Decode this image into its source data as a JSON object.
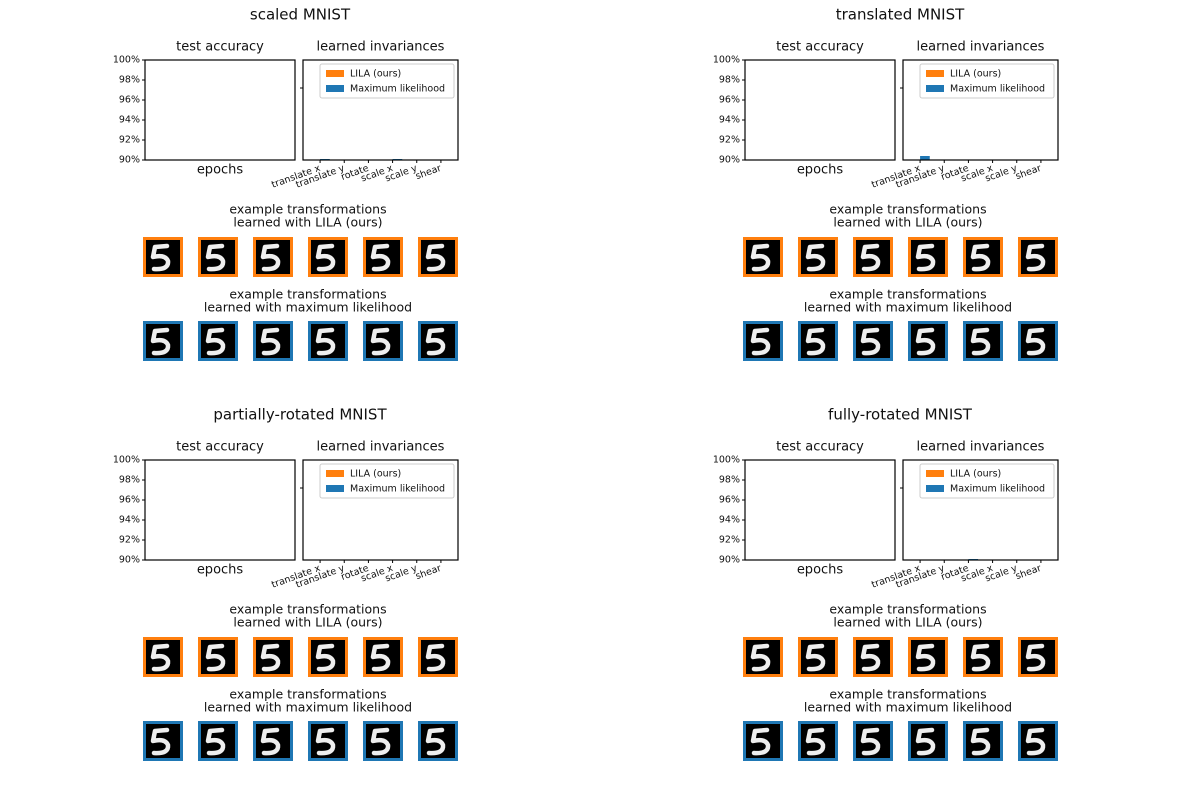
{
  "chart_data": [
    {
      "type": "line",
      "title": "test accuracy",
      "xlabel": "epochs",
      "ylim": [
        90,
        100
      ],
      "yticks": [
        {
          "value": 90,
          "label": "90%"
        },
        {
          "value": 92,
          "label": "92%"
        },
        {
          "value": 94,
          "label": "94%"
        },
        {
          "value": 96,
          "label": "96%"
        },
        {
          "value": 98,
          "label": "98%"
        },
        {
          "value": 100,
          "label": "100%"
        }
      ]
    },
    {
      "type": "bar",
      "title": "learned invariances",
      "ylim": [
        90,
        100
      ],
      "legend": "upper right",
      "categories": [
        "translate x",
        "translate y",
        "rotate",
        "scale x",
        "scale y",
        "shear"
      ],
      "series": [
        {
          "name": "LILA (ours)",
          "color": "#ff7f0e",
          "values": [
            90,
            90,
            90,
            90,
            90,
            90
          ]
        },
        {
          "name": "Maximum likelihood",
          "color": "#1f77b4",
          "values": [
            90.1,
            90,
            90,
            90.1,
            90,
            90
          ]
        }
      ]
    },
    {
      "type": "line",
      "title": "test accuracy",
      "xlabel": "epochs",
      "ylim": [
        90,
        100
      ],
      "yticks": [
        {
          "value": 90,
          "label": "90%"
        },
        {
          "value": 92,
          "label": "92%"
        },
        {
          "value": 94,
          "label": "94%"
        },
        {
          "value": 96,
          "label": "96%"
        },
        {
          "value": 98,
          "label": "98%"
        },
        {
          "value": 100,
          "label": "100%"
        }
      ]
    },
    {
      "type": "bar",
      "title": "learned invariances",
      "ylim": [
        90,
        100
      ],
      "legend": "upper right",
      "categories": [
        "translate x",
        "translate y",
        "rotate",
        "scale x",
        "scale y",
        "shear"
      ],
      "series": [
        {
          "name": "LILA (ours)",
          "color": "#ff7f0e",
          "values": [
            90,
            90,
            90,
            90,
            90,
            90
          ]
        },
        {
          "name": "Maximum likelihood",
          "color": "#1f77b4",
          "values": [
            90.4,
            90,
            90,
            90.05,
            90.05,
            90.05
          ]
        }
      ]
    },
    {
      "type": "line",
      "title": "test accuracy",
      "xlabel": "epochs",
      "ylim": [
        90,
        100
      ],
      "yticks": [
        {
          "value": 90,
          "label": "90%"
        },
        {
          "value": 92,
          "label": "92%"
        },
        {
          "value": 94,
          "label": "94%"
        },
        {
          "value": 96,
          "label": "96%"
        },
        {
          "value": 98,
          "label": "98%"
        },
        {
          "value": 100,
          "label": "100%"
        }
      ]
    },
    {
      "type": "bar",
      "title": "learned invariances",
      "ylim": [
        90,
        100
      ],
      "legend": "upper right",
      "categories": [
        "translate x",
        "translate y",
        "rotate",
        "scale x",
        "scale y",
        "shear"
      ],
      "series": [
        {
          "name": "LILA (ours)",
          "color": "#ff7f0e",
          "values": [
            90,
            90,
            90,
            90,
            90,
            90
          ]
        },
        {
          "name": "Maximum likelihood",
          "color": "#1f77b4",
          "values": [
            90.05,
            90.05,
            90.05,
            90.05,
            90,
            90
          ]
        }
      ]
    },
    {
      "type": "line",
      "title": "test accuracy",
      "xlabel": "epochs",
      "ylim": [
        90,
        100
      ],
      "yticks": [
        {
          "value": 90,
          "label": "90%"
        },
        {
          "value": 92,
          "label": "92%"
        },
        {
          "value": 94,
          "label": "94%"
        },
        {
          "value": 96,
          "label": "96%"
        },
        {
          "value": 98,
          "label": "98%"
        },
        {
          "value": 100,
          "label": "100%"
        }
      ]
    },
    {
      "type": "bar",
      "title": "learned invariances",
      "ylim": [
        90,
        100
      ],
      "legend": "upper right",
      "categories": [
        "translate x",
        "translate y",
        "rotate",
        "scale x",
        "scale y",
        "shear"
      ],
      "series": [
        {
          "name": "LILA (ours)",
          "color": "#ff7f0e",
          "values": [
            90,
            90,
            90,
            90,
            90,
            90
          ]
        },
        {
          "name": "Maximum likelihood",
          "color": "#1f77b4",
          "values": [
            90,
            90,
            90.1,
            90,
            90.05,
            90
          ]
        }
      ]
    }
  ],
  "panels": [
    {
      "title": "scaled MNIST",
      "caption_lila": [
        "example transformations",
        "learned with LILA (ours)"
      ],
      "caption_ml": [
        "example transformations",
        "learned with maximum likelihood"
      ]
    },
    {
      "title": "translated MNIST",
      "caption_lila": [
        "example transformations",
        "learned with LILA (ours)"
      ],
      "caption_ml": [
        "example transformations",
        "learned with maximum likelihood"
      ]
    },
    {
      "title": "partially-rotated MNIST",
      "caption_lila": [
        "example transformations",
        "learned with LILA (ours)"
      ],
      "caption_ml": [
        "example transformations",
        "learned with maximum likelihood"
      ]
    },
    {
      "title": "fully-rotated MNIST",
      "caption_lila": [
        "example transformations",
        "learned with LILA (ours)"
      ],
      "caption_ml": [
        "example transformations",
        "learned with maximum likelihood"
      ]
    }
  ]
}
